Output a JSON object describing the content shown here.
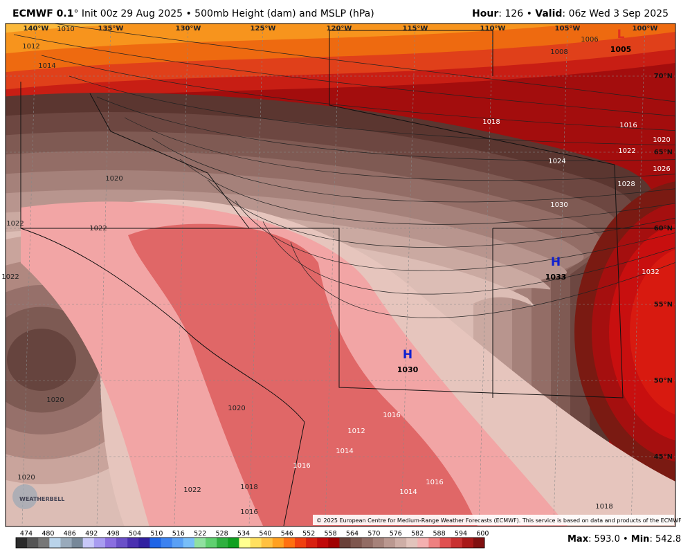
{
  "header": {
    "model": "ECMWF 0.1",
    "description": "° Init 00z 29 Aug 2025 • 500mb Height (dam) and MSLP (hPa)",
    "hour_label": "Hour",
    "hour_value": ": 126 • ",
    "valid_label": "Valid",
    "valid_value": ": 06z Wed 3 Sep 2025"
  },
  "longitudes": [
    "140°W",
    "135°W",
    "130°W",
    "125°W",
    "120°W",
    "115°W",
    "110°W",
    "105°W",
    "100°W"
  ],
  "latitudes": [
    "70°N",
    "65°N",
    "60°N",
    "55°N",
    "50°N",
    "45°N"
  ],
  "isobars": [
    "1010",
    "1012",
    "1014",
    "1006",
    "1008",
    "1018",
    "1016",
    "1020",
    "1022",
    "1024",
    "1026",
    "1028",
    "1030",
    "1020",
    "1022",
    "1022",
    "1032",
    "1022",
    "1020",
    "1020",
    "1012",
    "1016",
    "1014",
    "1016",
    "1016",
    "1014",
    "1022",
    "1020",
    "1018",
    "1016",
    "1018"
  ],
  "centers": [
    {
      "letter": "L",
      "value": "1005"
    },
    {
      "letter": "H",
      "value": "1033"
    },
    {
      "letter": "H",
      "value": "1030"
    }
  ],
  "copyright": "© 2025 European Centre for Medium-Range Weather Forecasts (ECMWF). This service is based on data and products of the ECMWF.",
  "logo": "WEATHERBELL",
  "colorbar": [
    474,
    480,
    486,
    492,
    498,
    504,
    510,
    516,
    522,
    528,
    534,
    540,
    546,
    552,
    558,
    564,
    570,
    576,
    582,
    588,
    594,
    600
  ],
  "stats": {
    "max_label": "Max",
    "max_value": ": 593.0 • ",
    "min_label": "Min",
    "min_value": ": 542.8"
  }
}
